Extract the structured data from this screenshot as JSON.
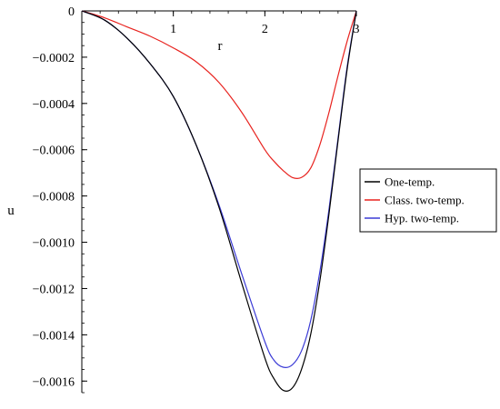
{
  "chart_data": {
    "type": "line",
    "title": "",
    "xlabel": "r",
    "ylabel": "u",
    "xlim": [
      0,
      3
    ],
    "ylim": [
      -0.00165,
      0
    ],
    "x_ticks": [
      {
        "value": 1,
        "label": "1"
      },
      {
        "value": 2,
        "label": "2"
      },
      {
        "value": 3,
        "label": "3"
      }
    ],
    "y_ticks": [
      {
        "value": 0,
        "label": "0"
      },
      {
        "value": -0.0002,
        "label": "−0.0002"
      },
      {
        "value": -0.0004,
        "label": "−0.0004"
      },
      {
        "value": -0.0006,
        "label": "−0.0006"
      },
      {
        "value": -0.0008,
        "label": "−0.0008"
      },
      {
        "value": -0.001,
        "label": "−0.0010"
      },
      {
        "value": -0.0012,
        "label": "−0.0012"
      },
      {
        "value": -0.0014,
        "label": "−0.0014"
      },
      {
        "value": -0.0016,
        "label": "−0.0016"
      }
    ],
    "grid": false,
    "legend_position": "right",
    "series": [
      {
        "name": "One-temp.",
        "color": "#000000",
        "x": [
          0,
          0.25,
          0.5,
          0.75,
          1.0,
          1.25,
          1.5,
          1.75,
          2.0,
          2.1,
          2.2,
          2.3,
          2.4,
          2.5,
          2.6,
          2.7,
          2.8,
          2.9,
          3.0
        ],
        "y": [
          0,
          -4e-05,
          -0.00012,
          -0.00023,
          -0.00037,
          -0.00058,
          -0.00085,
          -0.00118,
          -0.0015,
          -0.00159,
          -0.00164,
          -0.00163,
          -0.00155,
          -0.0014,
          -0.00117,
          -0.00088,
          -0.00056,
          -0.00025,
          0
        ]
      },
      {
        "name": "Class. two-temp.",
        "color": "#e8231f",
        "x": [
          0,
          0.25,
          0.5,
          0.75,
          1.0,
          1.25,
          1.5,
          1.75,
          2.0,
          2.1,
          2.2,
          2.3,
          2.4,
          2.5,
          2.6,
          2.7,
          2.8,
          2.9,
          3.0
        ],
        "y": [
          0,
          -3e-05,
          -7e-05,
          -0.00011,
          -0.00016,
          -0.00022,
          -0.00031,
          -0.00044,
          -0.0006,
          -0.00065,
          -0.00069,
          -0.00072,
          -0.00072,
          -0.00068,
          -0.00058,
          -0.00044,
          -0.00028,
          -0.00013,
          0
        ]
      },
      {
        "name": "Hyp. two-temp.",
        "color": "#3b3bd6",
        "x": [
          0,
          0.25,
          0.5,
          0.75,
          1.0,
          1.25,
          1.5,
          1.75,
          2.0,
          2.1,
          2.2,
          2.3,
          2.4,
          2.5,
          2.6,
          2.7,
          2.8,
          2.9,
          3.0
        ],
        "y": [
          0,
          -4e-05,
          -0.00012,
          -0.00023,
          -0.00037,
          -0.00058,
          -0.00084,
          -0.00114,
          -0.00143,
          -0.00151,
          -0.00154,
          -0.00153,
          -0.00147,
          -0.00134,
          -0.00113,
          -0.00086,
          -0.00055,
          -0.00024,
          0
        ]
      }
    ]
  }
}
